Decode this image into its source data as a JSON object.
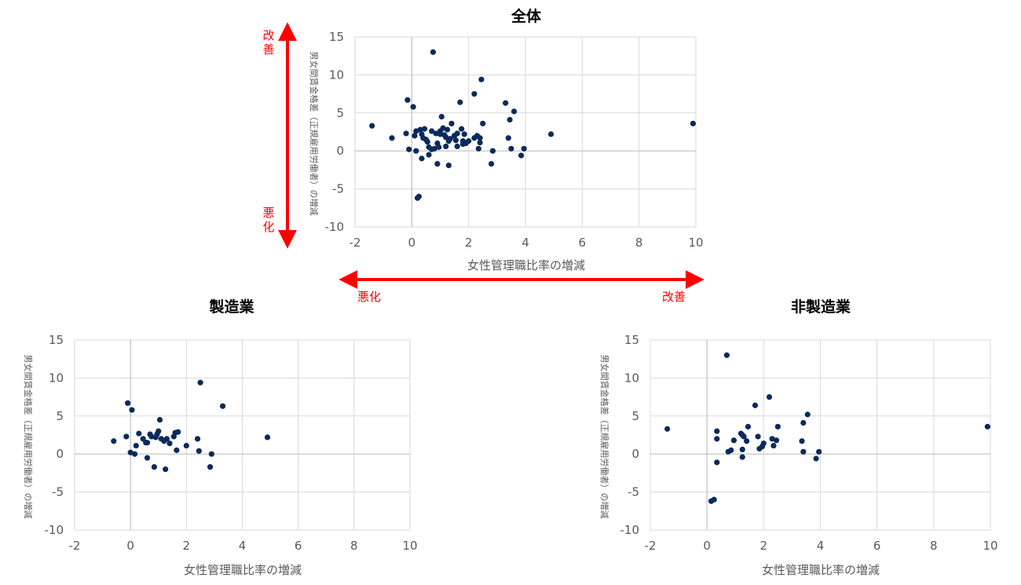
{
  "colors": {
    "marker": "#0b2a5b",
    "grid": "#d9d9d9",
    "axis": "#bfbfbf",
    "text": "#595959",
    "arrow": "#ff0000"
  },
  "annotations": {
    "v_improve": "改善",
    "v_worsen": "悪化",
    "h_worsen": "悪化",
    "h_improve": "改善"
  },
  "chart_data": [
    {
      "type": "scatter",
      "title": "全体",
      "xlabel": "女性管理職比率の増減",
      "ylabel": "男女間賃金格差（正規雇用労働者）の増減",
      "xlim": [
        -2,
        10
      ],
      "ylim": [
        -10,
        15
      ],
      "xticks": [
        -2,
        0,
        2,
        4,
        6,
        8,
        10
      ],
      "yticks": [
        -10,
        -5,
        0,
        5,
        10,
        15
      ],
      "grid": true,
      "points": [
        [
          -1.4,
          3.3
        ],
        [
          -0.7,
          1.7
        ],
        [
          -0.2,
          2.3
        ],
        [
          -0.15,
          6.7
        ],
        [
          -0.1,
          0.2
        ],
        [
          0.05,
          5.8
        ],
        [
          0.1,
          2.0
        ],
        [
          0.15,
          0.0
        ],
        [
          0.2,
          -6.2
        ],
        [
          0.25,
          -6.0
        ],
        [
          0.3,
          2.8
        ],
        [
          0.35,
          2.2
        ],
        [
          0.4,
          1.7
        ],
        [
          0.45,
          2.9
        ],
        [
          0.5,
          1.5
        ],
        [
          0.55,
          1.2
        ],
        [
          0.6,
          -0.5
        ],
        [
          0.7,
          2.6
        ],
        [
          0.75,
          13.0
        ],
        [
          0.8,
          0.3
        ],
        [
          0.85,
          2.3
        ],
        [
          0.9,
          -1.7
        ],
        [
          0.95,
          0.5
        ],
        [
          1.0,
          2.6
        ],
        [
          1.05,
          4.5
        ],
        [
          1.1,
          3.0
        ],
        [
          1.15,
          2.1
        ],
        [
          1.2,
          1.8
        ],
        [
          1.25,
          2.8
        ],
        [
          1.3,
          -1.9
        ],
        [
          1.35,
          1.6
        ],
        [
          1.4,
          3.6
        ],
        [
          1.5,
          2.0
        ],
        [
          1.55,
          1.4
        ],
        [
          1.6,
          2.3
        ],
        [
          1.7,
          6.4
        ],
        [
          1.75,
          2.9
        ],
        [
          1.8,
          0.9
        ],
        [
          1.85,
          2.2
        ],
        [
          1.9,
          1.0
        ],
        [
          2.0,
          1.3
        ],
        [
          2.2,
          7.5
        ],
        [
          2.3,
          2.0
        ],
        [
          2.35,
          0.3
        ],
        [
          2.4,
          1.7
        ],
        [
          2.45,
          9.4
        ],
        [
          2.5,
          3.6
        ],
        [
          2.8,
          -1.7
        ],
        [
          2.85,
          0.0
        ],
        [
          3.3,
          6.3
        ],
        [
          3.4,
          1.7
        ],
        [
          3.45,
          4.1
        ],
        [
          3.5,
          0.3
        ],
        [
          3.6,
          5.2
        ],
        [
          3.85,
          -0.6
        ],
        [
          3.95,
          0.3
        ],
        [
          4.9,
          2.2
        ],
        [
          9.9,
          3.6
        ],
        [
          0.9,
          1.0
        ],
        [
          0.35,
          -1.0
        ],
        [
          1.2,
          0.6
        ],
        [
          2.4,
          1.1
        ],
        [
          1.0,
          2.2
        ],
        [
          1.3,
          1.3
        ],
        [
          0.6,
          0.5
        ],
        [
          2.2,
          1.7
        ],
        [
          1.6,
          0.6
        ],
        [
          0.15,
          2.6
        ],
        [
          1.8,
          1.3
        ],
        [
          0.7,
          0.2
        ]
      ]
    },
    {
      "type": "scatter",
      "title": "製造業",
      "xlabel": "女性管理職比率の増減",
      "ylabel": "男女間賃金格差（正規雇用労働者）の増減",
      "xlim": [
        -2,
        10
      ],
      "ylim": [
        -10,
        15
      ],
      "xticks": [
        -2,
        0,
        2,
        4,
        6,
        8,
        10
      ],
      "yticks": [
        -10,
        -5,
        0,
        5,
        10,
        15
      ],
      "grid": true,
      "points": [
        [
          -0.6,
          1.7
        ],
        [
          -0.15,
          2.3
        ],
        [
          -0.1,
          6.7
        ],
        [
          0.0,
          0.2
        ],
        [
          0.05,
          5.8
        ],
        [
          0.15,
          0.0
        ],
        [
          0.2,
          1.1
        ],
        [
          0.3,
          2.7
        ],
        [
          0.45,
          2.0
        ],
        [
          0.55,
          1.5
        ],
        [
          0.6,
          -0.5
        ],
        [
          0.7,
          2.6
        ],
        [
          0.75,
          2.3
        ],
        [
          0.85,
          -1.7
        ],
        [
          0.9,
          2.2
        ],
        [
          0.95,
          2.6
        ],
        [
          1.0,
          3.0
        ],
        [
          1.05,
          4.5
        ],
        [
          1.1,
          2.0
        ],
        [
          1.2,
          1.7
        ],
        [
          1.25,
          -2.0
        ],
        [
          1.3,
          2.0
        ],
        [
          1.4,
          1.4
        ],
        [
          1.55,
          2.3
        ],
        [
          1.6,
          2.8
        ],
        [
          1.65,
          0.5
        ],
        [
          1.7,
          2.9
        ],
        [
          2.0,
          1.1
        ],
        [
          2.4,
          2.0
        ],
        [
          2.45,
          0.4
        ],
        [
          2.5,
          9.4
        ],
        [
          2.85,
          -1.7
        ],
        [
          2.9,
          0.0
        ],
        [
          3.3,
          6.3
        ],
        [
          4.9,
          2.2
        ],
        [
          0.6,
          1.5
        ]
      ]
    },
    {
      "type": "scatter",
      "title": "非製造業",
      "xlabel": "女性管理職比率の増減",
      "ylabel": "男女間賃金格差（正規雇用労働者）の増減",
      "xlim": [
        -2,
        10
      ],
      "ylim": [
        -10,
        15
      ],
      "xticks": [
        -2,
        0,
        2,
        4,
        6,
        8,
        10
      ],
      "yticks": [
        -10,
        -5,
        0,
        5,
        10,
        15
      ],
      "grid": true,
      "points": [
        [
          -1.4,
          3.3
        ],
        [
          0.15,
          -6.2
        ],
        [
          0.25,
          -6.0
        ],
        [
          0.35,
          3.0
        ],
        [
          0.35,
          2.0
        ],
        [
          0.35,
          -1.1
        ],
        [
          0.7,
          13.0
        ],
        [
          0.75,
          0.3
        ],
        [
          0.85,
          0.5
        ],
        [
          0.95,
          1.8
        ],
        [
          1.2,
          2.7
        ],
        [
          1.25,
          0.6
        ],
        [
          1.25,
          -0.4
        ],
        [
          1.3,
          2.3
        ],
        [
          1.4,
          1.7
        ],
        [
          1.45,
          3.6
        ],
        [
          1.7,
          6.4
        ],
        [
          1.8,
          2.3
        ],
        [
          1.85,
          0.7
        ],
        [
          1.95,
          1.0
        ],
        [
          2.0,
          1.4
        ],
        [
          2.2,
          7.5
        ],
        [
          2.3,
          2.0
        ],
        [
          2.35,
          1.1
        ],
        [
          2.45,
          1.8
        ],
        [
          2.5,
          3.6
        ],
        [
          3.35,
          1.7
        ],
        [
          3.4,
          4.1
        ],
        [
          3.4,
          0.3
        ],
        [
          3.55,
          5.2
        ],
        [
          3.85,
          -0.6
        ],
        [
          3.95,
          0.3
        ],
        [
          9.9,
          3.6
        ],
        [
          1.25,
          2.5
        ]
      ]
    }
  ]
}
